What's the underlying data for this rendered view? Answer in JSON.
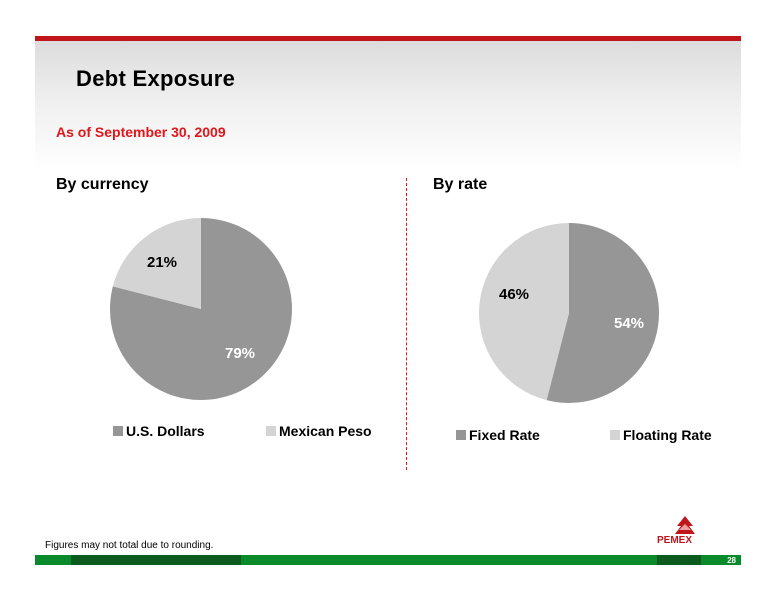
{
  "header": {
    "title": "Debt  Exposure",
    "subtitle": "As of September 30,  2009"
  },
  "charts": [
    {
      "title": "By currency"
    },
    {
      "title": "By rate"
    }
  ],
  "chart_data": [
    {
      "type": "pie",
      "title": "By currency",
      "labels": [
        "U.S. Dollars",
        "Mexican Peso"
      ],
      "values": [
        79,
        21
      ],
      "data_labels": [
        "79%",
        "21%"
      ],
      "colors": [
        "#969696",
        "#d4d4d4"
      ],
      "legend_position": "bottom"
    },
    {
      "type": "pie",
      "title": "By rate",
      "labels": [
        "Fixed Rate",
        "Floating Rate"
      ],
      "values": [
        54,
        46
      ],
      "data_labels": [
        "54%",
        "46%"
      ],
      "colors": [
        "#969696",
        "#d4d4d4"
      ],
      "legend_position": "bottom"
    }
  ],
  "footer": {
    "note": "Figures may not total due to rounding.",
    "page_number": "28",
    "logo_text": "PEMEX"
  }
}
